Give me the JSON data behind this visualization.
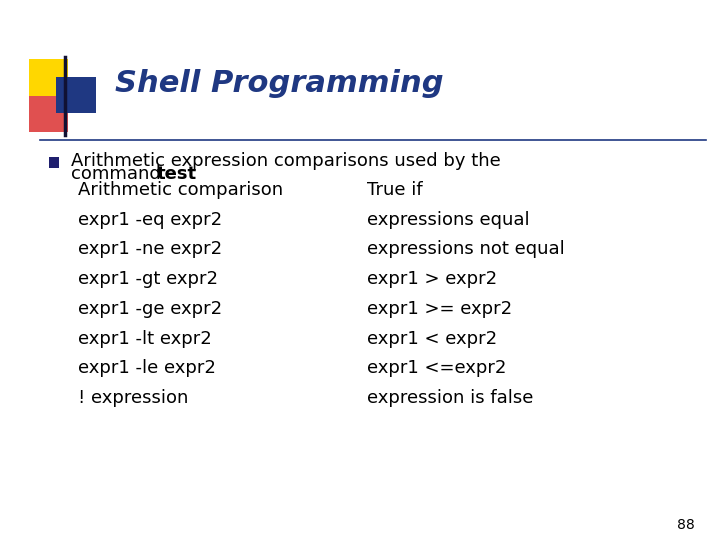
{
  "title": "Shell Programming",
  "title_color": "#1F3882",
  "title_fontsize": 22,
  "background_color": "#FFFFFF",
  "bullet_text_line1": "Arithmetic expression comparisons used by the",
  "bullet_text_line2": "command ",
  "bullet_text_bold": "test",
  "table_header_left": "Arithmetic comparison",
  "table_header_right": "True if",
  "table_rows": [
    [
      "expr1 -eq expr2",
      "expressions equal"
    ],
    [
      "expr1 -ne expr2",
      "expressions not equal"
    ],
    [
      "expr1 -gt expr2",
      "expr1 > expr2"
    ],
    [
      "expr1 -ge expr2",
      "expr1 >= expr2"
    ],
    [
      "expr1 -lt expr2",
      "expr1 < expr2"
    ],
    [
      "expr1 -le expr2",
      "expr1 <=expr2"
    ],
    [
      "! expression",
      "expression is false"
    ]
  ],
  "page_number": "88",
  "sep_line_color": "#1F3882",
  "bullet_color": "#1F1F6E",
  "text_color": "#000000",
  "yellow_color": "#FFD700",
  "red_color": "#E05050",
  "blue_color": "#1F3882",
  "vline_color": "#111133",
  "body_fontsize": 13,
  "table_fontsize": 13,
  "header_fontsize": 13
}
